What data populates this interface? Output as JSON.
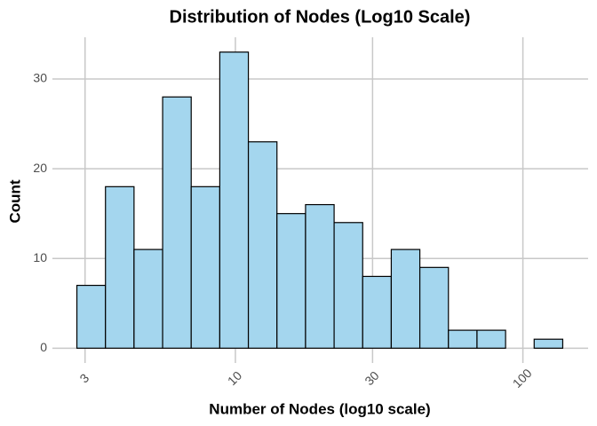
{
  "chart_data": {
    "type": "histogram",
    "title": "Distribution of Nodes (Log10 Scale)",
    "x_label": "Number of Nodes (log10 scale)",
    "y_label": "Count",
    "x_log": true,
    "bins": [
      2.81,
      3.533,
      4.441,
      5.584,
      7.02,
      8.826,
      11.096,
      13.95,
      17.54,
      22.05,
      27.72,
      34.85,
      43.81,
      55.08,
      69.25,
      87.06,
      109.45,
      137.6
    ],
    "values": [
      7,
      18,
      11,
      28,
      18,
      33,
      23,
      15,
      16,
      14,
      8,
      11,
      9,
      2,
      2,
      0,
      1
    ],
    "color": "#a4d6ee",
    "edge_color": "#000000",
    "xlim": [
      2.31,
      168.6
    ],
    "xticks": [
      3,
      10,
      30,
      100
    ],
    "ylim": [
      -1.65,
      34.65
    ],
    "yticks": [
      0,
      10,
      20,
      30
    ],
    "grid": true
  }
}
